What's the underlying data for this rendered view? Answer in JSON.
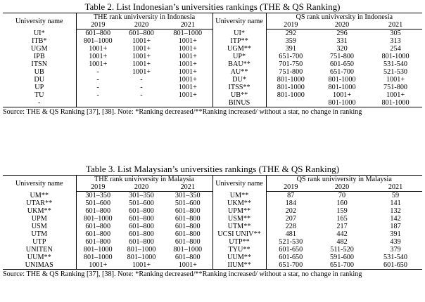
{
  "table2": {
    "caption": "Table 2. List Indonesian’s universities rankings (THE & QS Ranking)",
    "the_header": "THE rank univiversity in Indonesia",
    "qs_header": "QS rank univiversity in Indonesia",
    "univ_label": "University name",
    "years": [
      "2019",
      "2020",
      "2021"
    ],
    "rows": [
      [
        "UI*",
        "601–800",
        "601–800",
        "801–1000",
        "UI*",
        "292",
        "296",
        "305"
      ],
      [
        "ITB*",
        "801–1000",
        "1001+",
        "1001+",
        "ITP**",
        "359",
        "331",
        "313"
      ],
      [
        "UGM",
        "1001+",
        "1001+",
        "1001+",
        "UGM**",
        "391",
        "320",
        "254"
      ],
      [
        "IPB",
        "1001+",
        "1001+",
        "1001+",
        "UP*",
        "651-700",
        "751-800",
        "801-1000"
      ],
      [
        "ITSN",
        "1001+",
        "1001+",
        "1001+",
        "BAU**",
        "701-750",
        "601-650",
        "531-540"
      ],
      [
        "UB",
        "-",
        "1001+",
        "1001+",
        "AU**",
        "751-800",
        "651-700",
        "521-530"
      ],
      [
        "DU",
        "-",
        "-",
        "1001+",
        "DU*",
        "801-1000",
        "801-1000",
        "1001+"
      ],
      [
        "UP",
        "-",
        "-",
        "1001+",
        "ITSS**",
        "801-1000",
        "801-1000",
        "751-800"
      ],
      [
        "TU",
        "-",
        "-",
        "1001+",
        "UB**",
        "801-1000",
        "1001+",
        "1001+"
      ],
      [
        "-",
        "",
        "",
        "",
        "BINUS",
        "",
        "801-1000",
        "801-1000"
      ]
    ],
    "source": "Source: THE & QS Ranking [37], [38]. Note: *Ranking decreased/**Ranking increased/ without a star, no change in ranking"
  },
  "table3": {
    "caption": "Table 3. List Malaysian’s universities rankings (THE & QS Ranking)",
    "the_header": "THE rank univiversity in Malaysia",
    "qs_header": "QS rank univiversity in Malaysia",
    "univ_label": "University name",
    "years": [
      "2019",
      "2020",
      "2021"
    ],
    "rows": [
      [
        "UM**",
        "301–350",
        "301–350",
        "301–350",
        "UM**",
        "87",
        "70",
        "59"
      ],
      [
        "UTAR**",
        "501–600",
        "501–600",
        "501–600",
        "UKM**",
        "184",
        "160",
        "141"
      ],
      [
        "UKM**",
        "601–800",
        "601–800",
        "601–800",
        "UPM**",
        "202",
        "159",
        "132"
      ],
      [
        "UPM",
        "801–1000",
        "601–800",
        "601–800",
        "USM**",
        "207",
        "165",
        "142"
      ],
      [
        "USM",
        "601–800",
        "601–800",
        "601–800",
        "UTM**",
        "228",
        "217",
        "187"
      ],
      [
        "UTM",
        "601–800",
        "601–800",
        "601–800",
        "UCSI UNIV**",
        "481",
        "442",
        "391"
      ],
      [
        "UTP",
        "601–800",
        "601–800",
        "601–800",
        "UTP**",
        "521-530",
        "482",
        "439"
      ],
      [
        "UNITEN",
        "801–1000",
        "801–1000",
        "801–1000",
        "TYU**",
        "601-650",
        "511-520",
        "379"
      ],
      [
        "UUM**",
        "801–1000",
        "801–1000",
        "601–800",
        "UUM**",
        "601-650",
        "591-600",
        "531-540"
      ],
      [
        "UNIMAS",
        "1001+",
        "1001+",
        "1001+",
        "IIUM**",
        "651-700",
        "651-700",
        "601-650"
      ]
    ],
    "source": "Source: THE & QS Ranking [37], [38]. Note: *Ranking decreased/**Ranking increased/ without a star, no change in ranking"
  }
}
